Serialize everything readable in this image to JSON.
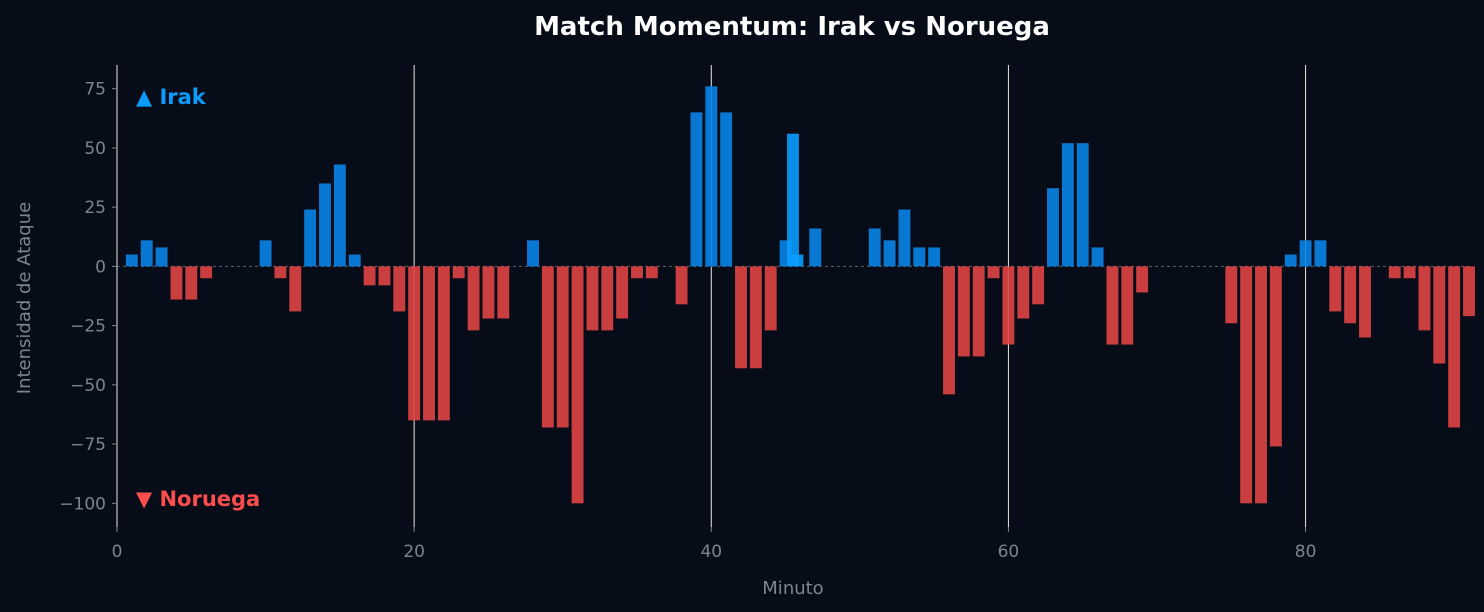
{
  "chart_data": {
    "type": "bar",
    "title": "Match Momentum: Irak vs Noruega",
    "xlabel": "Minuto",
    "ylabel": "Intensidad de Ataque",
    "xlim": [
      0,
      91
    ],
    "ylim": [
      -110,
      85
    ],
    "x_ticks": [
      0,
      20,
      40,
      60,
      80
    ],
    "y_ticks": [
      75,
      50,
      25,
      0,
      -25,
      -50,
      -75,
      -100
    ],
    "vertical_markers": [
      20,
      40,
      60,
      80
    ],
    "grid": false,
    "annotations": [
      {
        "text": "▲ Irak",
        "team": "home"
      },
      {
        "text": "▼ Noruega",
        "team": "away"
      }
    ],
    "colors": {
      "home": "#0a84e8",
      "away": "#e04444",
      "home_highlight": "#0a9cff"
    },
    "x": [
      1,
      2,
      3,
      4,
      5,
      6,
      10,
      11,
      12,
      13,
      14,
      15,
      16,
      17,
      18,
      19,
      20,
      21,
      22,
      23,
      24,
      25,
      26,
      28,
      29,
      30,
      31,
      32,
      33,
      34,
      35,
      36,
      38,
      39,
      40,
      41,
      42,
      43,
      44,
      45,
      45.5,
      45.8,
      47,
      51,
      52,
      53,
      54,
      55,
      56,
      57,
      58,
      59,
      60,
      61,
      62,
      63,
      64,
      65,
      66,
      67,
      68,
      69,
      75,
      76,
      77,
      78,
      79,
      80,
      81,
      82,
      83,
      84,
      86,
      87,
      88,
      89,
      90,
      91
    ],
    "values": [
      5,
      11,
      8,
      -14,
      -14,
      -5,
      11,
      -5,
      -19,
      24,
      35,
      43,
      5,
      -8,
      -8,
      -19,
      -65,
      -65,
      -65,
      -5,
      -27,
      -22,
      -22,
      11,
      -68,
      -68,
      -100,
      -27,
      -27,
      -22,
      -5,
      -5,
      -16,
      65,
      76,
      65,
      -43,
      -43,
      -27,
      11,
      56,
      5,
      16,
      16,
      11,
      24,
      8,
      8,
      -54,
      -38,
      -38,
      -5,
      -33,
      -22,
      -16,
      33,
      52,
      52,
      8,
      -33,
      -33,
      -11,
      -24,
      -100,
      -100,
      -76,
      5,
      11,
      11,
      -19,
      -24,
      -30,
      -5,
      -5,
      -27,
      -41,
      -68,
      -21
    ]
  }
}
